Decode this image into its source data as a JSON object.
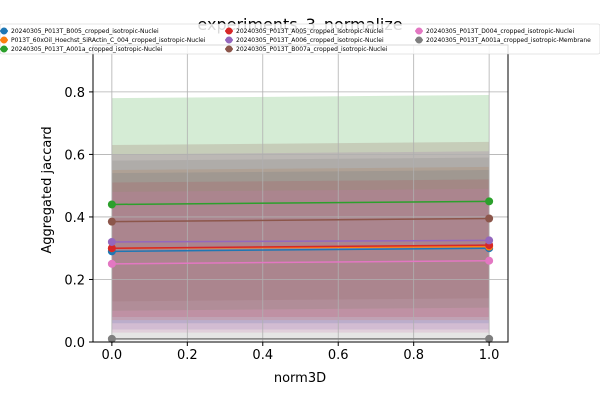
{
  "chart_data": {
    "type": "line",
    "title": "experiments_3_normalize",
    "xlabel": "norm3D",
    "ylabel": "Aggregated jaccard",
    "xlim": [
      -0.05,
      1.05
    ],
    "ylim": [
      0.0,
      0.95
    ],
    "xticks": [
      "0.0",
      "0.2",
      "0.4",
      "0.6",
      "0.8",
      "1.0"
    ],
    "yticks": [
      "0.0",
      "0.2",
      "0.4",
      "0.6",
      "0.8"
    ],
    "grid": true,
    "legend_position": "top",
    "x": [
      0.0,
      1.0
    ],
    "series": [
      {
        "name": "20240305_P013T_B005_cropped_isotropic-Nuclei",
        "color": "#1f77b4",
        "values": [
          0.29,
          0.3
        ],
        "band": [
          [
            0.06,
            0.54
          ],
          [
            0.06,
            0.55
          ]
        ]
      },
      {
        "name": "P013T_60xOil_Hoechst_SiRActin_C_004_cropped_isotropic-Nuclei",
        "color": "#ff7f0e",
        "values": [
          0.3,
          0.305
        ],
        "band": [
          [
            0.07,
            0.55
          ],
          [
            0.07,
            0.56
          ]
        ]
      },
      {
        "name": "20240305_P013T_A001a_cropped_isotropic-Nuclei",
        "color": "#2ca02c",
        "values": [
          0.44,
          0.45
        ],
        "band": [
          [
            0.1,
            0.78
          ],
          [
            0.11,
            0.79
          ]
        ]
      },
      {
        "name": "20240305_P013T_A005_cropped_isotropic-Nuclei",
        "color": "#d62728",
        "values": [
          0.3,
          0.31
        ],
        "band": [
          [
            0.08,
            0.51
          ],
          [
            0.08,
            0.52
          ]
        ]
      },
      {
        "name": "20240305_P013T_A006_cropped_isotropic-Nuclei",
        "color": "#9467bd",
        "values": [
          0.32,
          0.325
        ],
        "band": [
          [
            0.04,
            0.6
          ],
          [
            0.04,
            0.61
          ]
        ]
      },
      {
        "name": "20240305_P013T_B007a_cropped_isotropic-Nuclei",
        "color": "#8c564b",
        "values": [
          0.385,
          0.395
        ],
        "band": [
          [
            0.13,
            0.63
          ],
          [
            0.14,
            0.64
          ]
        ]
      },
      {
        "name": "20240305_P013T_D004_cropped_isotropic-Nuclei",
        "color": "#e377c2",
        "values": [
          0.25,
          0.26
        ],
        "band": [
          [
            0.03,
            0.48
          ],
          [
            0.03,
            0.49
          ]
        ]
      },
      {
        "name": "20240305_P013T_A001a_cropped_isotropic-Membrane",
        "color": "#7f7f7f",
        "values": [
          0.01,
          0.01
        ],
        "band": [
          [
            0.005,
            0.58
          ],
          [
            0.005,
            0.59
          ]
        ]
      }
    ]
  }
}
